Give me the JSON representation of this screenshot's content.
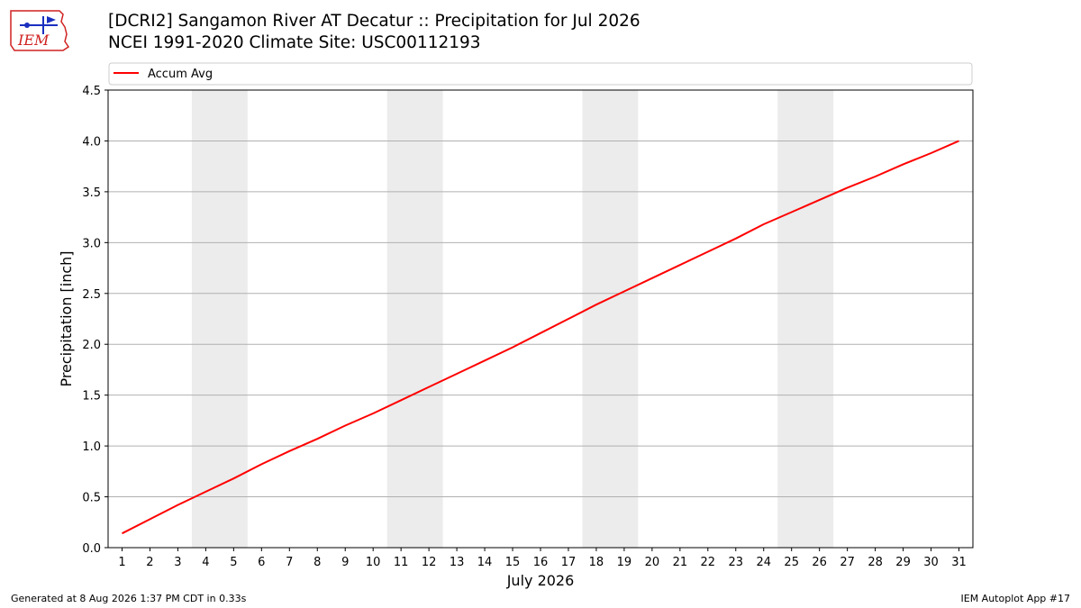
{
  "header": {
    "title_line1": "[DCRI2] Sangamon River  AT Decatur :: Precipitation for Jul 2026",
    "title_line2": "NCEI 1991-2020 Climate Site: USC00112193"
  },
  "logo": {
    "text": "IEM",
    "icon": "iem-logo-icon"
  },
  "footer": {
    "generated": "Generated at 8 Aug 2026 1:37 PM CDT in 0.33s",
    "app": "IEM Autoplot App #17"
  },
  "chart_data": {
    "type": "line",
    "xlabel": "July 2026",
    "ylabel": "Precipitation [inch]",
    "ylim": [
      0,
      4.5
    ],
    "xlim": [
      0.5,
      31.5
    ],
    "yticks": [
      "0.0",
      "0.5",
      "1.0",
      "1.5",
      "2.0",
      "2.5",
      "3.0",
      "3.5",
      "4.0",
      "4.5"
    ],
    "x": [
      1,
      2,
      3,
      4,
      5,
      6,
      7,
      8,
      9,
      10,
      11,
      12,
      13,
      14,
      15,
      16,
      17,
      18,
      19,
      20,
      21,
      22,
      23,
      24,
      25,
      26,
      27,
      28,
      29,
      30,
      31
    ],
    "weekend_bands": [
      [
        3.5,
        5.5
      ],
      [
        10.5,
        12.5
      ],
      [
        17.5,
        19.5
      ],
      [
        24.5,
        26.5
      ]
    ],
    "grid": "horizontal",
    "legend_position": "top",
    "series": [
      {
        "name": "Accum Avg",
        "color": "#ff0000",
        "values": [
          0.14,
          0.28,
          0.42,
          0.55,
          0.68,
          0.82,
          0.95,
          1.07,
          1.2,
          1.32,
          1.45,
          1.58,
          1.71,
          1.84,
          1.97,
          2.11,
          2.25,
          2.39,
          2.52,
          2.65,
          2.78,
          2.91,
          3.04,
          3.18,
          3.3,
          3.42,
          3.54,
          3.65,
          3.77,
          3.88,
          4.0
        ]
      }
    ]
  }
}
